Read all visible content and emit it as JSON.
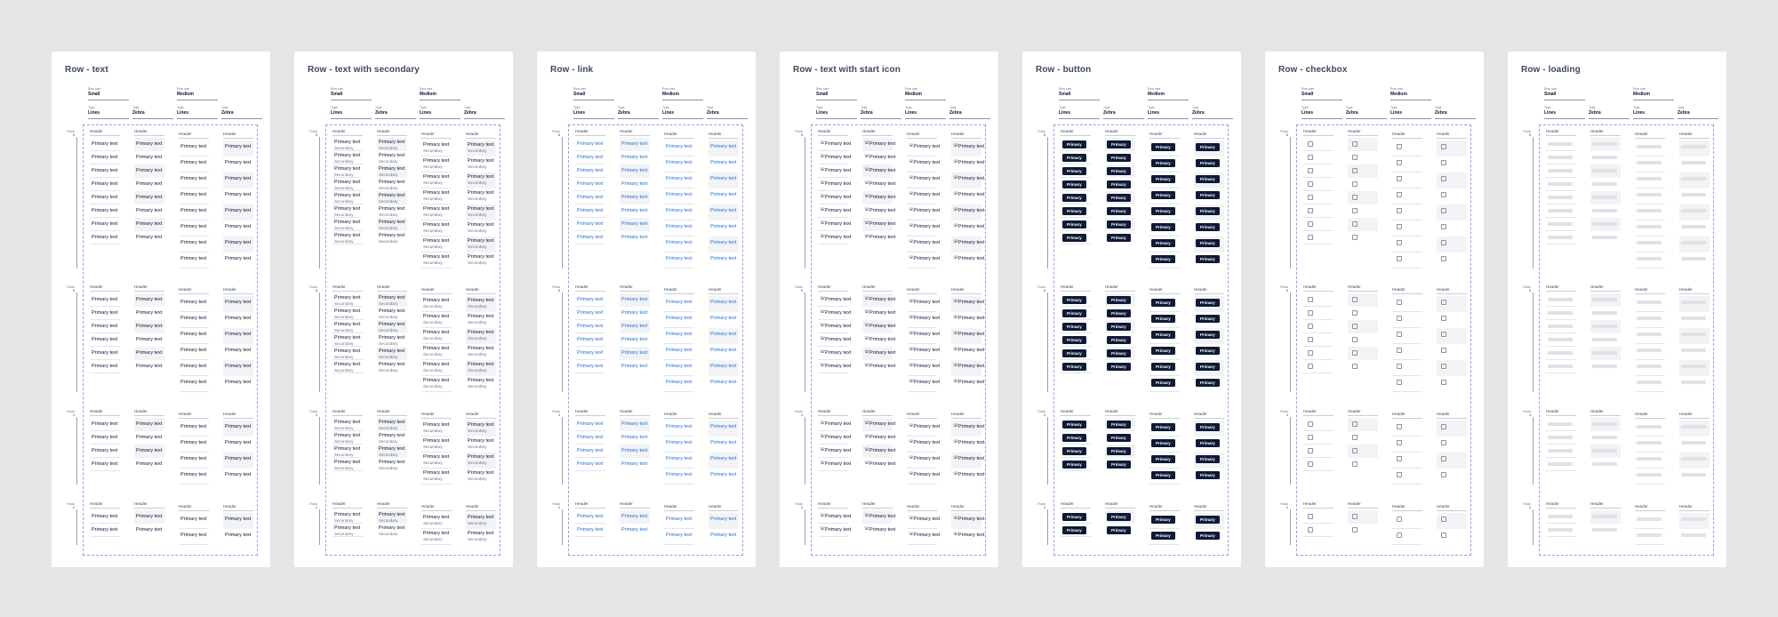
{
  "cell_text": {
    "primary": "Primary text",
    "secondary": "Secondary",
    "button": "Primary",
    "header": "Header"
  },
  "options": [
    {
      "key": "Row size",
      "value": "Small"
    },
    {
      "key": "Row size",
      "value": "Medium"
    },
    {
      "key": "Type",
      "value": "Lines"
    },
    {
      "key": "Type",
      "value": "Zebra"
    },
    {
      "key": "Type",
      "value": "Lines"
    },
    {
      "key": "Type",
      "value": "Zebra"
    }
  ],
  "groups": [
    {
      "label": "Rows",
      "count": "8",
      "rows_small": 8,
      "rows_medium": 8
    },
    {
      "label": "Rows",
      "count": "6",
      "rows_small": 6,
      "rows_medium": 6
    },
    {
      "label": "Rows",
      "count": "4",
      "rows_small": 4,
      "rows_medium": 4
    },
    {
      "label": "Rows",
      "count": "2",
      "rows_small": 2,
      "rows_medium": 2
    }
  ],
  "cards": [
    {
      "title": "Row - text",
      "variant": "text"
    },
    {
      "title": "Row - text with secondary",
      "variant": "secondary"
    },
    {
      "title": "Row - link",
      "variant": "link"
    },
    {
      "title": "Row - text with start icon",
      "variant": "icon"
    },
    {
      "title": "Row - button",
      "variant": "button"
    },
    {
      "title": "Row - checkbox",
      "variant": "checkbox"
    },
    {
      "title": "Row - loading",
      "variant": "loading"
    }
  ],
  "colors": {
    "background": "#e5e5e5",
    "card": "#ffffff",
    "frame_border": "#9b9bf0",
    "link": "#1f6fd1",
    "button": "#0e1a36",
    "zebra": "#f2f3f5"
  },
  "icons": {
    "start_icon": "phone-icon"
  }
}
